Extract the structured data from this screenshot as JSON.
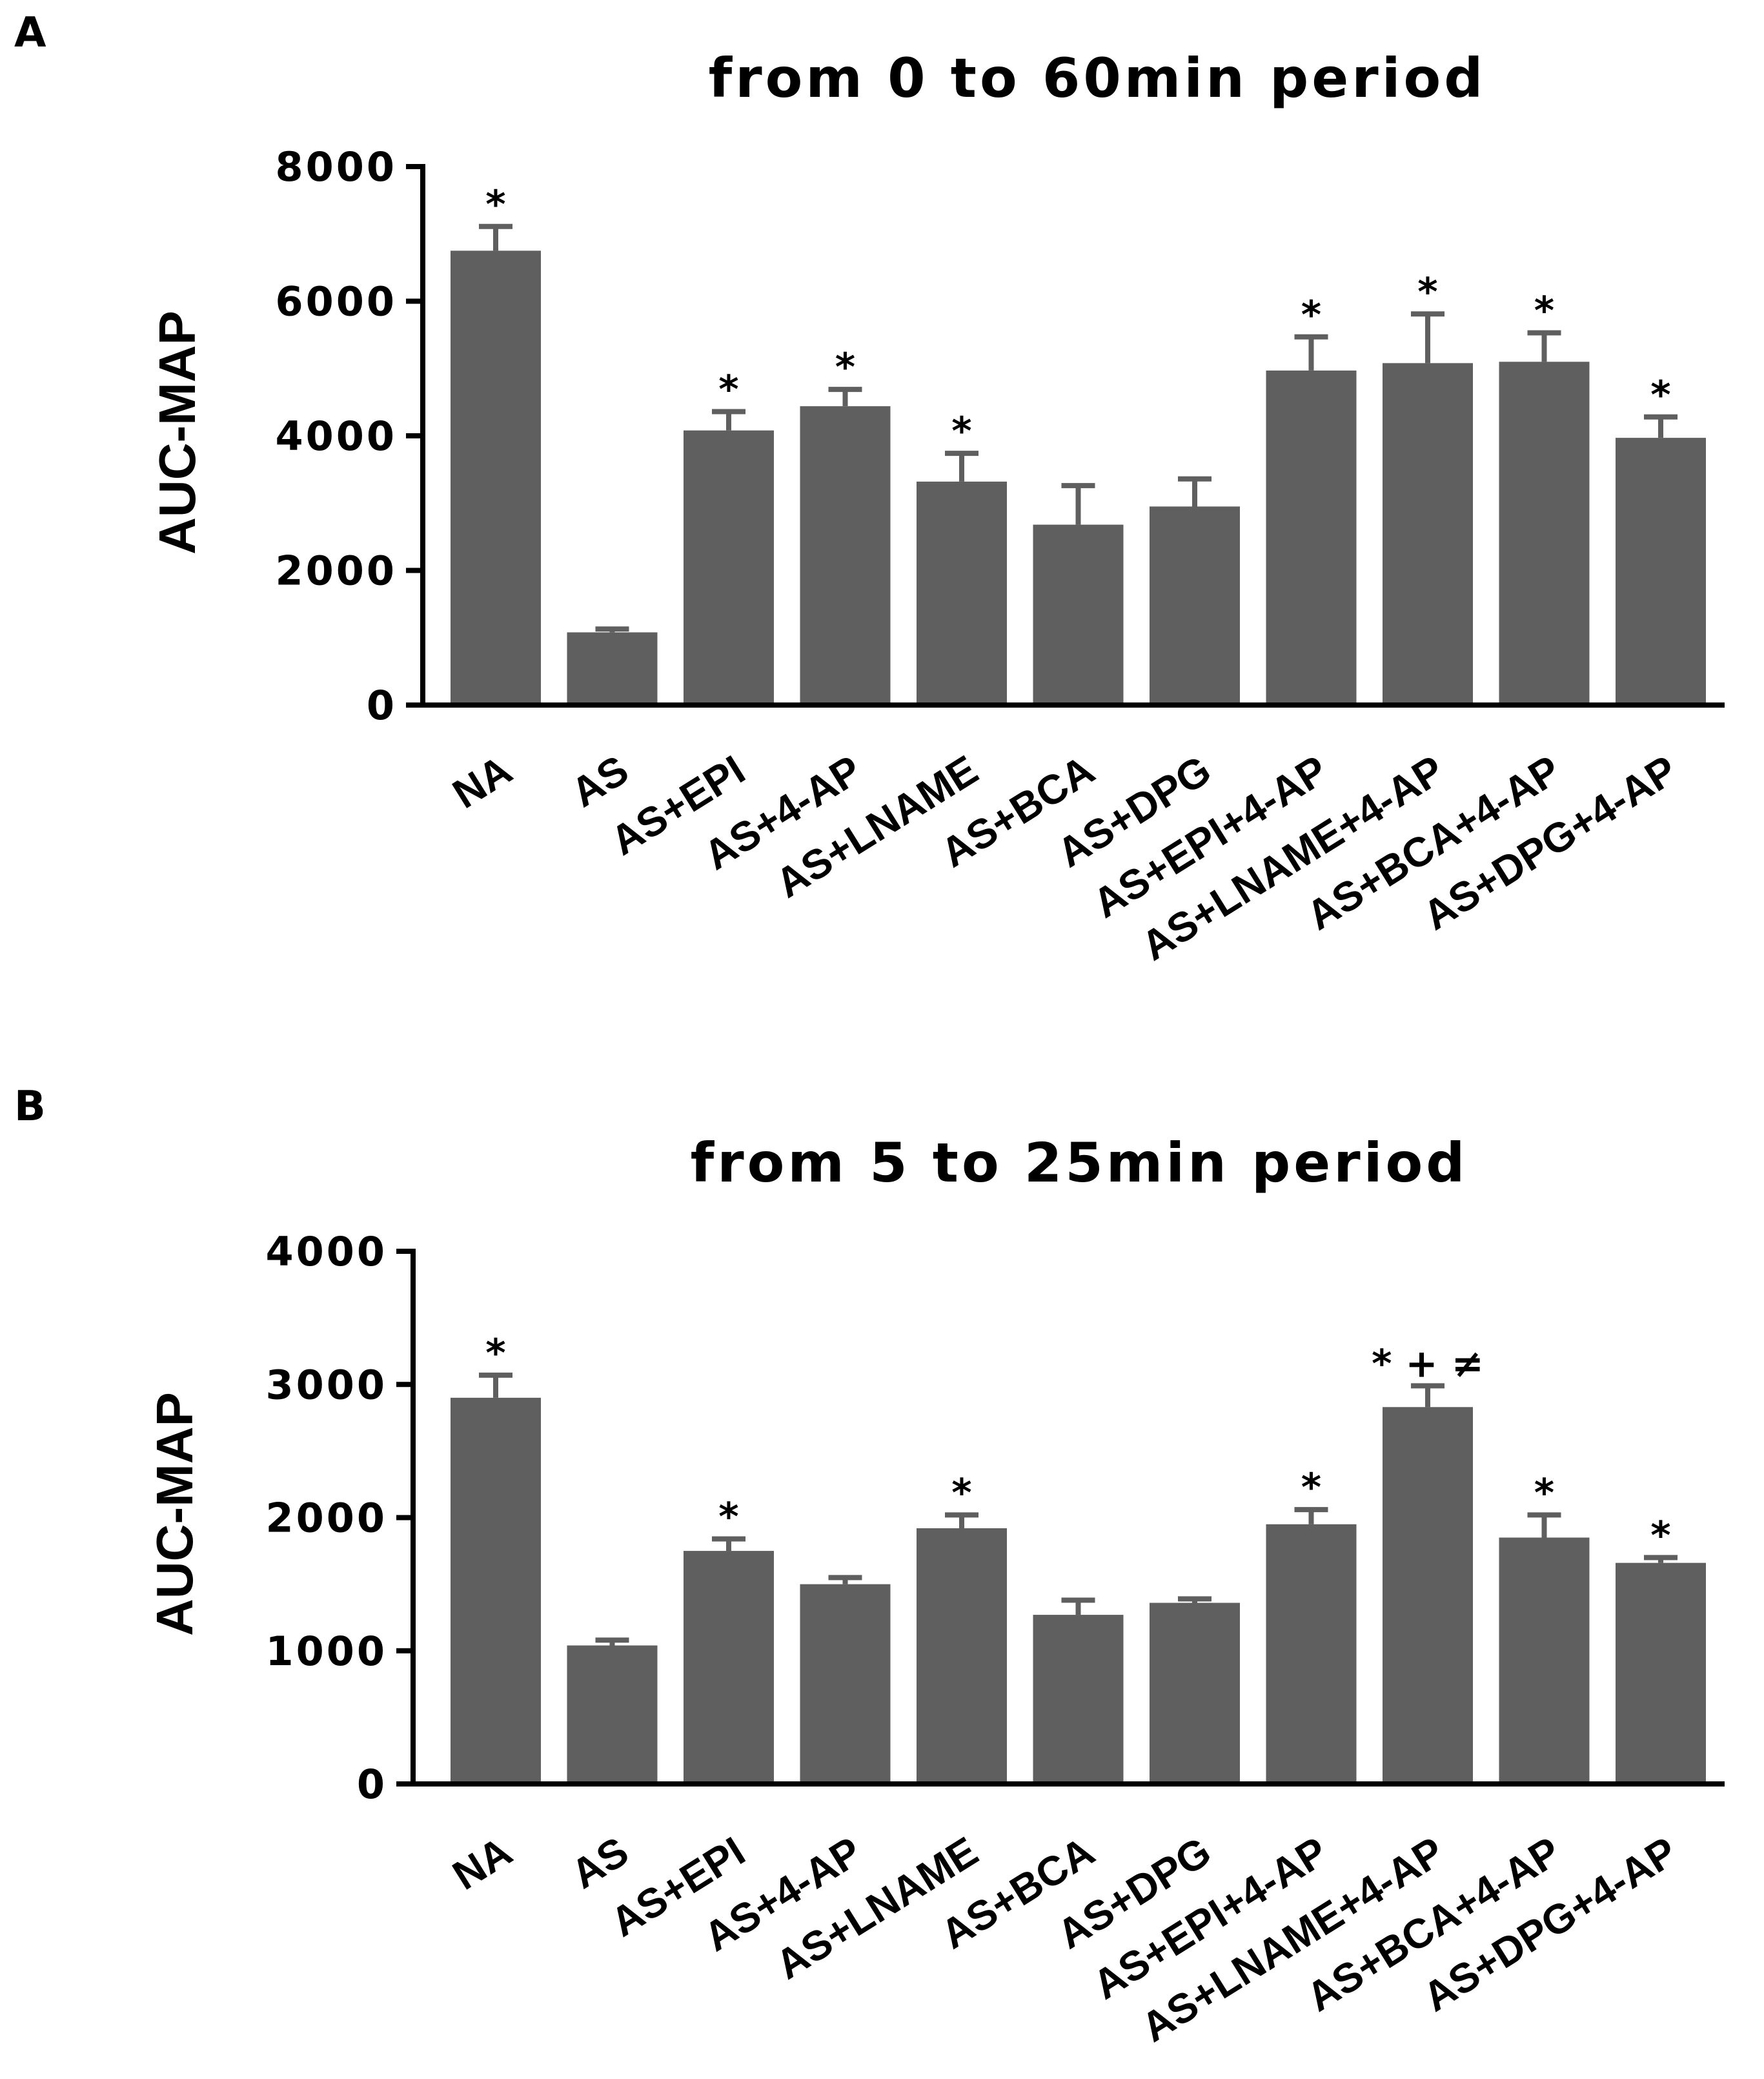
{
  "colors": {
    "bar": "#5f5f5f",
    "axis": "#000000",
    "background": "#ffffff"
  },
  "chart_data": [
    {
      "type": "bar",
      "panel": "A",
      "title": "from 0 to 60min period",
      "xlabel": "",
      "ylabel": "AUC-MAP",
      "ylim": [
        0,
        8000
      ],
      "yticks": [
        0,
        2000,
        4000,
        6000,
        8000
      ],
      "categories": [
        "NA",
        "AS",
        "AS+EPI",
        "AS+4-AP",
        "AS+LNAME",
        "AS+BCA",
        "AS+DPG",
        "AS+EPI+4-AP",
        "AS+LNAME+4-AP",
        "AS+BCA+4-AP",
        "AS+DPG+4-AP"
      ],
      "values": [
        6750,
        1080,
        4080,
        4440,
        3320,
        2680,
        2950,
        4970,
        5080,
        5100,
        3970
      ],
      "errors": [
        360,
        50,
        280,
        250,
        420,
        580,
        410,
        500,
        730,
        430,
        310
      ],
      "annotations": [
        "*",
        "",
        "*",
        "*",
        "*",
        "",
        "",
        "*",
        "*",
        "*",
        "*"
      ]
    },
    {
      "type": "bar",
      "panel": "B",
      "title": "from 5 to 25min period",
      "xlabel": "",
      "ylabel": "AUC-MAP",
      "ylim": [
        0,
        4000
      ],
      "yticks": [
        0,
        1000,
        2000,
        3000,
        4000
      ],
      "categories": [
        "NA",
        "AS",
        "AS+EPI",
        "AS+4-AP",
        "AS+LNAME",
        "AS+BCA",
        "AS+DPG",
        "AS+EPI+4-AP",
        "AS+LNAME+4-AP",
        "AS+BCA+4-AP",
        "AS+DPG+4-AP"
      ],
      "values": [
        2900,
        1040,
        1750,
        1500,
        1920,
        1270,
        1360,
        1950,
        2830,
        1850,
        1660
      ],
      "errors": [
        170,
        40,
        90,
        50,
        100,
        110,
        30,
        110,
        160,
        170,
        40
      ],
      "annotations": [
        "*",
        "",
        "*",
        "",
        "*",
        "",
        "",
        "*",
        "* + ≠",
        "*",
        "*"
      ]
    }
  ]
}
